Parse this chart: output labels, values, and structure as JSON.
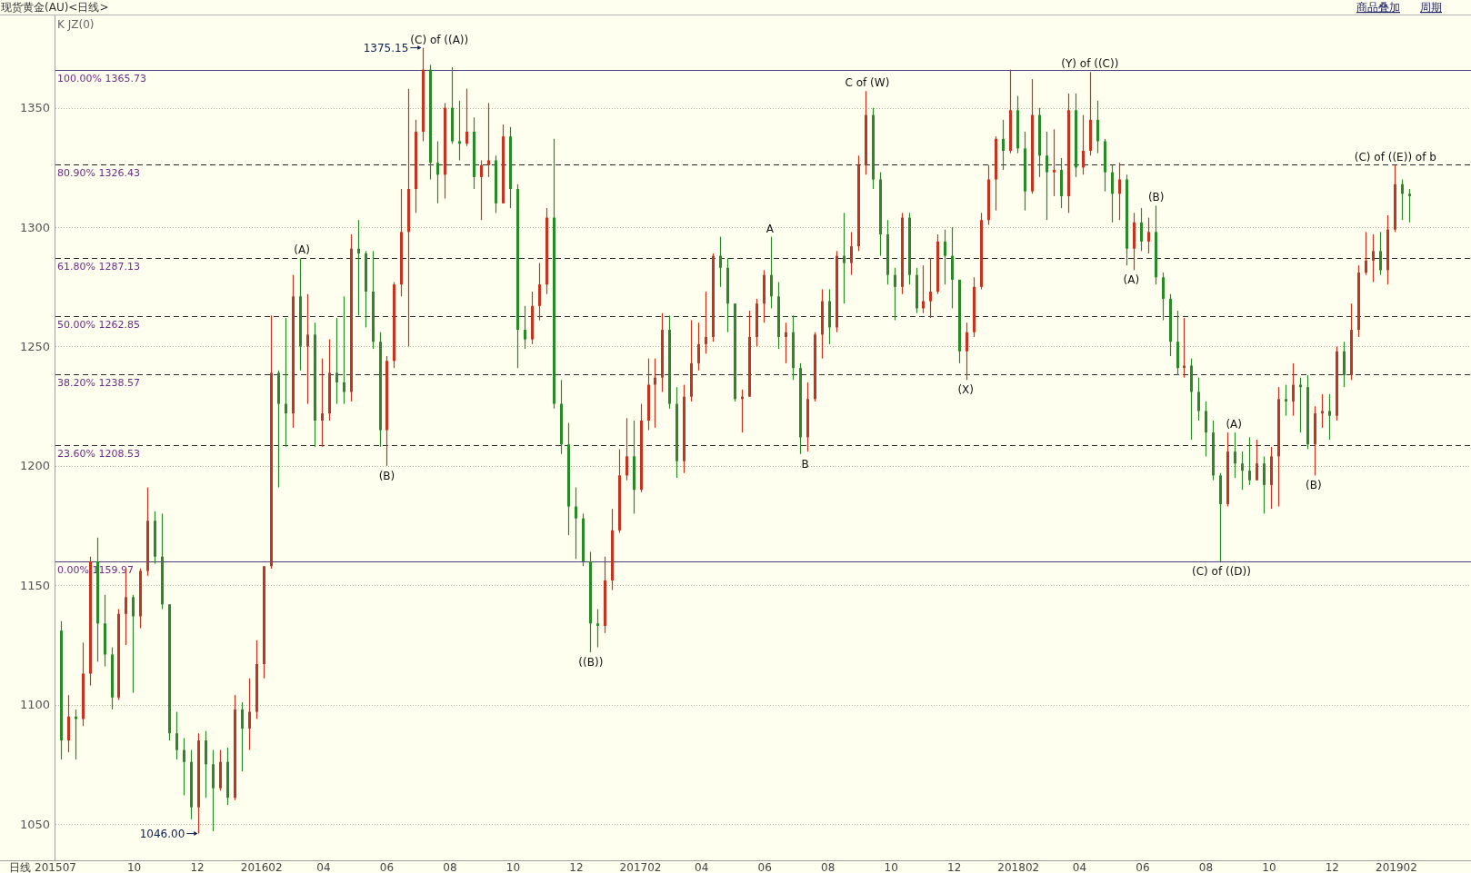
{
  "chart_data": {
    "type": "candlestick",
    "title": "现货黄金(AU)<日线>",
    "xlabel": "日线",
    "x": [
      "2015-07-22",
      "2015-07-29",
      "2015-08-05",
      "2015-08-12",
      "2015-08-19",
      "2015-08-26",
      "2015-09-02",
      "2015-09-09",
      "2015-09-16",
      "2015-09-23",
      "2015-09-30",
      "2015-10-07",
      "2015-10-14",
      "2015-10-21",
      "2015-10-28",
      "2015-11-04",
      "2015-11-11",
      "2015-11-18",
      "2015-11-25",
      "2015-12-02",
      "2015-12-09",
      "2015-12-16",
      "2015-12-23",
      "2015-12-30",
      "2016-01-06",
      "2016-01-13",
      "2016-01-20",
      "2016-01-27",
      "2016-02-03",
      "2016-02-10",
      "2016-02-17",
      "2016-02-24",
      "2016-03-02",
      "2016-03-09",
      "2016-03-16",
      "2016-03-23",
      "2016-03-30",
      "2016-04-06",
      "2016-04-13",
      "2016-04-20",
      "2016-04-27",
      "2016-05-04",
      "2016-05-11",
      "2016-05-18",
      "2016-05-25",
      "2016-06-01",
      "2016-06-08",
      "2016-06-15",
      "2016-06-22",
      "2016-06-29",
      "2016-07-06",
      "2016-07-13",
      "2016-07-20",
      "2016-07-27",
      "2016-08-03",
      "2016-08-10",
      "2016-08-17",
      "2016-08-24",
      "2016-08-31",
      "2016-09-07",
      "2016-09-14",
      "2016-09-21",
      "2016-09-28",
      "2016-10-05",
      "2016-10-12",
      "2016-10-19",
      "2016-10-26",
      "2016-11-02",
      "2016-11-09",
      "2016-11-16",
      "2016-11-23",
      "2016-11-30",
      "2016-12-07",
      "2016-12-14",
      "2016-12-21",
      "2016-12-28",
      "2017-01-04",
      "2017-01-11",
      "2017-01-18",
      "2017-01-25",
      "2017-02-01",
      "2017-02-08",
      "2017-02-15",
      "2017-02-22",
      "2017-03-01",
      "2017-03-08",
      "2017-03-15",
      "2017-03-22",
      "2017-03-29",
      "2017-04-05",
      "2017-04-12",
      "2017-04-19",
      "2017-04-26",
      "2017-05-03",
      "2017-05-10",
      "2017-05-17",
      "2017-05-24",
      "2017-05-31",
      "2017-06-07",
      "2017-06-14",
      "2017-06-21",
      "2017-06-28",
      "2017-07-05",
      "2017-07-12",
      "2017-07-19",
      "2017-07-26",
      "2017-08-02",
      "2017-08-09",
      "2017-08-16",
      "2017-08-23",
      "2017-08-30",
      "2017-09-06",
      "2017-09-13",
      "2017-09-20",
      "2017-09-27",
      "2017-10-04",
      "2017-10-11",
      "2017-10-18",
      "2017-10-25",
      "2017-11-01",
      "2017-11-08",
      "2017-11-15",
      "2017-11-22",
      "2017-11-29",
      "2017-12-06",
      "2017-12-13",
      "2017-12-20",
      "2017-12-27",
      "2018-01-03",
      "2018-01-10",
      "2018-01-17",
      "2018-01-24",
      "2018-01-31",
      "2018-02-07",
      "2018-02-14",
      "2018-02-21",
      "2018-02-28",
      "2018-03-07",
      "2018-03-14",
      "2018-03-21",
      "2018-03-28",
      "2018-04-04",
      "2018-04-11",
      "2018-04-18",
      "2018-04-25",
      "2018-05-02",
      "2018-05-09",
      "2018-05-16",
      "2018-05-23",
      "2018-05-30",
      "2018-06-06",
      "2018-06-13",
      "2018-06-20",
      "2018-06-27",
      "2018-07-04",
      "2018-07-11",
      "2018-07-18",
      "2018-07-25",
      "2018-08-01",
      "2018-08-08",
      "2018-08-15",
      "2018-08-22",
      "2018-08-29",
      "2018-09-05",
      "2018-09-12",
      "2018-09-19",
      "2018-09-26",
      "2018-10-03",
      "2018-10-10",
      "2018-10-17",
      "2018-10-24",
      "2018-10-31",
      "2018-11-07",
      "2018-11-14",
      "2018-11-21",
      "2018-11-28",
      "2018-12-05",
      "2018-12-12",
      "2018-12-19",
      "2018-12-26",
      "2019-01-02",
      "2019-01-09",
      "2019-01-16",
      "2019-01-23",
      "2019-01-30",
      "2019-02-06",
      "2019-02-13"
    ],
    "ohlc": [
      [
        1131,
        1135,
        1077,
        1085
      ],
      [
        1085,
        1104,
        1080,
        1095
      ],
      [
        1095,
        1098,
        1077,
        1094
      ],
      [
        1094,
        1126,
        1091,
        1113
      ],
      [
        1113,
        1162,
        1108,
        1160
      ],
      [
        1160,
        1170,
        1118,
        1134
      ],
      [
        1134,
        1146,
        1116,
        1121
      ],
      [
        1121,
        1124,
        1098,
        1103
      ],
      [
        1103,
        1140,
        1102,
        1138
      ],
      [
        1138,
        1157,
        1125,
        1145
      ],
      [
        1145,
        1146,
        1105,
        1137
      ],
      [
        1137,
        1157,
        1132,
        1156
      ],
      [
        1156,
        1191,
        1154,
        1177
      ],
      [
        1177,
        1181,
        1159,
        1162
      ],
      [
        1162,
        1180,
        1140,
        1142
      ],
      [
        1142,
        1142,
        1085,
        1088
      ],
      [
        1088,
        1097,
        1077,
        1081
      ],
      [
        1081,
        1086,
        1062,
        1076
      ],
      [
        1076,
        1081,
        1052,
        1057
      ],
      [
        1057,
        1088,
        1046,
        1085
      ],
      [
        1085,
        1089,
        1061,
        1075
      ],
      [
        1075,
        1081,
        1047,
        1065
      ],
      [
        1065,
        1081,
        1064,
        1076
      ],
      [
        1076,
        1082,
        1058,
        1061
      ],
      [
        1061,
        1104,
        1060,
        1098
      ],
      [
        1098,
        1101,
        1072,
        1090
      ],
      [
        1090,
        1111,
        1081,
        1097
      ],
      [
        1097,
        1127,
        1094,
        1117
      ],
      [
        1117,
        1158,
        1111,
        1158
      ],
      [
        1158,
        1263,
        1157,
        1239
      ],
      [
        1239,
        1240,
        1191,
        1226
      ],
      [
        1226,
        1262,
        1208,
        1222
      ],
      [
        1222,
        1280,
        1216,
        1271
      ],
      [
        1271,
        1287,
        1240,
        1250
      ],
      [
        1250,
        1272,
        1226,
        1255
      ],
      [
        1255,
        1260,
        1208,
        1219
      ],
      [
        1219,
        1245,
        1208,
        1222
      ],
      [
        1222,
        1253,
        1219,
        1239
      ],
      [
        1239,
        1262,
        1226,
        1235
      ],
      [
        1235,
        1271,
        1226,
        1231
      ],
      [
        1231,
        1297,
        1227,
        1291
      ],
      [
        1291,
        1303,
        1263,
        1289
      ],
      [
        1289,
        1290,
        1258,
        1273
      ],
      [
        1273,
        1290,
        1249,
        1252
      ],
      [
        1252,
        1256,
        1208,
        1215
      ],
      [
        1215,
        1246,
        1200,
        1244
      ],
      [
        1244,
        1277,
        1241,
        1276
      ],
      [
        1276,
        1316,
        1271,
        1298
      ],
      [
        1298,
        1358,
        1250,
        1316
      ],
      [
        1316,
        1345,
        1306,
        1340
      ],
      [
        1340,
        1375.15,
        1336,
        1366
      ],
      [
        1366,
        1368,
        1320,
        1327
      ],
      [
        1327,
        1336,
        1310,
        1322
      ],
      [
        1322,
        1352,
        1312,
        1350
      ],
      [
        1350,
        1367,
        1335,
        1336
      ],
      [
        1336,
        1353,
        1328,
        1335
      ],
      [
        1335,
        1358,
        1334,
        1340
      ],
      [
        1340,
        1346,
        1316,
        1321
      ],
      [
        1321,
        1328,
        1303,
        1326
      ],
      [
        1326,
        1352,
        1321,
        1328
      ],
      [
        1328,
        1330,
        1306,
        1310
      ],
      [
        1310,
        1343,
        1310,
        1338
      ],
      [
        1338,
        1342,
        1308,
        1316
      ],
      [
        1316,
        1318,
        1241,
        1257
      ],
      [
        1257,
        1267,
        1249,
        1253
      ],
      [
        1253,
        1273,
        1251,
        1267
      ],
      [
        1267,
        1285,
        1261,
        1276
      ],
      [
        1276,
        1308,
        1272,
        1304
      ],
      [
        1304,
        1337,
        1224,
        1226
      ],
      [
        1226,
        1236,
        1205,
        1209
      ],
      [
        1209,
        1218,
        1171,
        1183
      ],
      [
        1183,
        1191,
        1161,
        1178
      ],
      [
        1178,
        1180,
        1158,
        1160
      ],
      [
        1160,
        1164,
        1122,
        1134
      ],
      [
        1134,
        1140,
        1124,
        1133
      ],
      [
        1133,
        1162,
        1130,
        1152
      ],
      [
        1152,
        1182,
        1148,
        1173
      ],
      [
        1173,
        1207,
        1172,
        1196
      ],
      [
        1196,
        1220,
        1194,
        1204
      ],
      [
        1204,
        1219,
        1180,
        1190
      ],
      [
        1190,
        1226,
        1189,
        1219
      ],
      [
        1219,
        1245,
        1215,
        1234
      ],
      [
        1234,
        1245,
        1216,
        1237
      ],
      [
        1237,
        1264,
        1231,
        1257
      ],
      [
        1257,
        1263,
        1224,
        1226
      ],
      [
        1226,
        1233,
        1195,
        1202
      ],
      [
        1202,
        1234,
        1197,
        1229
      ],
      [
        1229,
        1261,
        1227,
        1243
      ],
      [
        1243,
        1260,
        1240,
        1251
      ],
      [
        1251,
        1273,
        1247,
        1254
      ],
      [
        1254,
        1289,
        1252,
        1288
      ],
      [
        1288,
        1296,
        1275,
        1283
      ],
      [
        1283,
        1287,
        1256,
        1268
      ],
      [
        1268,
        1268,
        1227,
        1228
      ],
      [
        1228,
        1232,
        1214,
        1229
      ],
      [
        1229,
        1265,
        1229,
        1254
      ],
      [
        1254,
        1270,
        1250,
        1268
      ],
      [
        1268,
        1282,
        1260,
        1280
      ],
      [
        1280,
        1296,
        1266,
        1271
      ],
      [
        1271,
        1277,
        1249,
        1254
      ],
      [
        1254,
        1260,
        1243,
        1256
      ],
      [
        1256,
        1263,
        1236,
        1241
      ],
      [
        1241,
        1243,
        1205,
        1212
      ],
      [
        1212,
        1235,
        1206,
        1228
      ],
      [
        1228,
        1256,
        1227,
        1255
      ],
      [
        1255,
        1274,
        1245,
        1269
      ],
      [
        1269,
        1274,
        1251,
        1258
      ],
      [
        1258,
        1290,
        1256,
        1288
      ],
      [
        1288,
        1306,
        1268,
        1285
      ],
      [
        1285,
        1298,
        1280,
        1292
      ],
      [
        1292,
        1330,
        1290,
        1326
      ],
      [
        1326,
        1357,
        1322,
        1347
      ],
      [
        1347,
        1350,
        1316,
        1320
      ],
      [
        1320,
        1323,
        1288,
        1297
      ],
      [
        1297,
        1303,
        1276,
        1280
      ],
      [
        1280,
        1283,
        1261,
        1275
      ],
      [
        1275,
        1306,
        1272,
        1304
      ],
      [
        1304,
        1306,
        1276,
        1280
      ],
      [
        1280,
        1283,
        1264,
        1266
      ],
      [
        1266,
        1284,
        1264,
        1269
      ],
      [
        1269,
        1287,
        1262,
        1273
      ],
      [
        1273,
        1297,
        1272,
        1294
      ],
      [
        1294,
        1299,
        1276,
        1288
      ],
      [
        1288,
        1300,
        1266,
        1278
      ],
      [
        1278,
        1278,
        1243,
        1248
      ],
      [
        1248,
        1260,
        1236,
        1256
      ],
      [
        1256,
        1279,
        1254,
        1275
      ],
      [
        1275,
        1306,
        1274,
        1303
      ],
      [
        1303,
        1326,
        1301,
        1320
      ],
      [
        1320,
        1338,
        1307,
        1337
      ],
      [
        1337,
        1345,
        1324,
        1332
      ],
      [
        1332,
        1366,
        1331,
        1349
      ],
      [
        1349,
        1355,
        1331,
        1333
      ],
      [
        1333,
        1340,
        1307,
        1315
      ],
      [
        1315,
        1362,
        1314,
        1347
      ],
      [
        1347,
        1350,
        1321,
        1330
      ],
      [
        1330,
        1340,
        1303,
        1323
      ],
      [
        1323,
        1341,
        1313,
        1324
      ],
      [
        1324,
        1329,
        1308,
        1313
      ],
      [
        1313,
        1356,
        1306,
        1349
      ],
      [
        1349,
        1356,
        1321,
        1325
      ],
      [
        1325,
        1347,
        1322,
        1332
      ],
      [
        1332,
        1365,
        1330,
        1345
      ],
      [
        1345,
        1353,
        1331,
        1336
      ],
      [
        1336,
        1337,
        1315,
        1323
      ],
      [
        1323,
        1326,
        1302,
        1314
      ],
      [
        1314,
        1327,
        1303,
        1320
      ],
      [
        1320,
        1322,
        1284,
        1291
      ],
      [
        1291,
        1306,
        1282,
        1302
      ],
      [
        1302,
        1308,
        1290,
        1294
      ],
      [
        1294,
        1304,
        1289,
        1298
      ],
      [
        1298,
        1309,
        1276,
        1279
      ],
      [
        1279,
        1281,
        1261,
        1270
      ],
      [
        1270,
        1272,
        1246,
        1252
      ],
      [
        1252,
        1265,
        1238,
        1241
      ],
      [
        1241,
        1262,
        1237,
        1242
      ],
      [
        1242,
        1245,
        1211,
        1231
      ],
      [
        1231,
        1237,
        1219,
        1223
      ],
      [
        1223,
        1227,
        1204,
        1214
      ],
      [
        1214,
        1219,
        1194,
        1196
      ],
      [
        1196,
        1197,
        1160,
        1184
      ],
      [
        1184,
        1214,
        1183,
        1206
      ],
      [
        1206,
        1214,
        1195,
        1201
      ],
      [
        1201,
        1206,
        1190,
        1198
      ],
      [
        1198,
        1212,
        1192,
        1194
      ],
      [
        1194,
        1211,
        1194,
        1201
      ],
      [
        1201,
        1204,
        1180,
        1192
      ],
      [
        1192,
        1208,
        1182,
        1204
      ],
      [
        1204,
        1233,
        1183,
        1228
      ],
      [
        1228,
        1234,
        1221,
        1227
      ],
      [
        1227,
        1243,
        1221,
        1234
      ],
      [
        1234,
        1237,
        1214,
        1233
      ],
      [
        1233,
        1238,
        1207,
        1209
      ],
      [
        1209,
        1225,
        1196,
        1222
      ],
      [
        1222,
        1230,
        1216,
        1223
      ],
      [
        1223,
        1230,
        1211,
        1221
      ],
      [
        1221,
        1250,
        1219,
        1248
      ],
      [
        1248,
        1252,
        1233,
        1238
      ],
      [
        1238,
        1268,
        1236,
        1257
      ],
      [
        1257,
        1284,
        1254,
        1281
      ],
      [
        1281,
        1298,
        1280,
        1286
      ],
      [
        1286,
        1297,
        1277,
        1290
      ],
      [
        1290,
        1298,
        1280,
        1282
      ],
      [
        1282,
        1305,
        1276,
        1299
      ],
      [
        1299,
        1326,
        1298,
        1318
      ],
      [
        1318,
        1320,
        1303,
        1314
      ],
      [
        1314,
        1316,
        1302,
        1313
      ]
    ],
    "colors": [
      "#2a8a2a",
      "#c8321e",
      "#2a8a2a",
      "#c8321e",
      "#c8321e",
      "#2a8a2a",
      "#2a8a2a",
      "#2a8a2a",
      "#c8321e",
      "#c8321e",
      "#2a8a2a",
      "#c8321e",
      "#c8321e",
      "#2a8a2a",
      "#2a8a2a",
      "#2a8a2a",
      "#2a8a2a",
      "#2a8a2a",
      "#2a8a2a",
      "#c8321e",
      "#2a8a2a",
      "#2a8a2a",
      "#c8321e",
      "#2a8a2a",
      "#c8321e",
      "#2a8a2a",
      "#c8321e",
      "#c8321e",
      "#c8321e",
      "#c8321e",
      "#2a8a2a",
      "#2a8a2a",
      "#c8321e",
      "#2a8a2a",
      "#c8321e",
      "#2a8a2a",
      "#c8321e",
      "#c8321e",
      "#2a8a2a",
      "#2a8a2a",
      "#c8321e",
      "#2a8a2a",
      "#2a8a2a",
      "#2a8a2a",
      "#2a8a2a",
      "#c8321e",
      "#c8321e",
      "#c8321e",
      "#c8321e",
      "#c8321e",
      "#c8321e",
      "#2a8a2a",
      "#2a8a2a",
      "#c8321e",
      "#2a8a2a",
      "#2a8a2a",
      "#c8321e",
      "#2a8a2a",
      "#c8321e",
      "#c8321e",
      "#2a8a2a",
      "#c8321e",
      "#2a8a2a",
      "#2a8a2a",
      "#2a8a2a",
      "#c8321e",
      "#c8321e",
      "#c8321e",
      "#2a8a2a",
      "#2a8a2a",
      "#2a8a2a",
      "#2a8a2a",
      "#2a8a2a",
      "#2a8a2a",
      "#2a8a2a",
      "#c8321e",
      "#c8321e",
      "#c8321e",
      "#c8321e",
      "#2a8a2a",
      "#c8321e",
      "#c8321e",
      "#c8321e",
      "#c8321e",
      "#2a8a2a",
      "#2a8a2a",
      "#c8321e",
      "#c8321e",
      "#c8321e",
      "#c8321e",
      "#c8321e",
      "#2a8a2a",
      "#2a8a2a",
      "#2a8a2a",
      "#c8321e",
      "#c8321e",
      "#c8321e",
      "#c8321e",
      "#2a8a2a",
      "#2a8a2a",
      "#c8321e",
      "#2a8a2a",
      "#2a8a2a",
      "#c8321e",
      "#c8321e",
      "#c8321e",
      "#2a8a2a",
      "#c8321e",
      "#2a8a2a",
      "#c8321e",
      "#c8321e",
      "#c8321e",
      "#2a8a2a",
      "#2a8a2a",
      "#2a8a2a",
      "#2a8a2a",
      "#c8321e",
      "#2a8a2a",
      "#2a8a2a",
      "#c8321e",
      "#c8321e",
      "#c8321e",
      "#2a8a2a",
      "#2a8a2a",
      "#2a8a2a",
      "#c8321e",
      "#c8321e",
      "#c8321e",
      "#c8321e",
      "#c8321e",
      "#2a8a2a",
      "#c8321e",
      "#2a8a2a",
      "#2a8a2a",
      "#c8321e",
      "#2a8a2a",
      "#2a8a2a",
      "#c8321e",
      "#2a8a2a",
      "#c8321e",
      "#2a8a2a",
      "#c8321e",
      "#c8321e",
      "#2a8a2a",
      "#2a8a2a",
      "#2a8a2a",
      "#c8321e",
      "#2a8a2a",
      "#c8321e",
      "#2a8a2a",
      "#c8321e",
      "#2a8a2a",
      "#2a8a2a",
      "#2a8a2a",
      "#2a8a2a",
      "#c8321e",
      "#2a8a2a",
      "#2a8a2a",
      "#2a8a2a",
      "#2a8a2a",
      "#2a8a2a",
      "#c8321e",
      "#2a8a2a",
      "#2a8a2a",
      "#2a8a2a",
      "#c8321e",
      "#2a8a2a",
      "#c8321e",
      "#c8321e",
      "#2a8a2a",
      "#c8321e",
      "#2a8a2a",
      "#2a8a2a",
      "#c8321e",
      "#c8321e",
      "#2a8a2a",
      "#c8321e",
      "#2a8a2a",
      "#c8321e",
      "#c8321e",
      "#c8321e",
      "#c8321e",
      "#2a8a2a",
      "#c8321e",
      "#c8321e",
      "#2a8a2a",
      "#2a8a2a"
    ],
    "xlim": [
      "2015-07-17",
      "2019-04-14"
    ],
    "xticks": [
      {
        "value": "2015-07-17",
        "label": "201507"
      },
      {
        "value": "2015-10-01",
        "label": "10"
      },
      {
        "value": "2015-12-01",
        "label": "12"
      },
      {
        "value": "2016-02-01",
        "label": "201602"
      },
      {
        "value": "2016-04-01",
        "label": "04"
      },
      {
        "value": "2016-06-01",
        "label": "06"
      },
      {
        "value": "2016-08-01",
        "label": "08"
      },
      {
        "value": "2016-10-01",
        "label": "10"
      },
      {
        "value": "2016-12-01",
        "label": "12"
      },
      {
        "value": "2017-02-01",
        "label": "201702"
      },
      {
        "value": "2017-04-01",
        "label": "04"
      },
      {
        "value": "2017-06-01",
        "label": "06"
      },
      {
        "value": "2017-08-01",
        "label": "08"
      },
      {
        "value": "2017-10-01",
        "label": "10"
      },
      {
        "value": "2017-12-01",
        "label": "12"
      },
      {
        "value": "2018-02-01",
        "label": "201802"
      },
      {
        "value": "2018-04-01",
        "label": "04"
      },
      {
        "value": "2018-06-01",
        "label": "06"
      },
      {
        "value": "2018-08-01",
        "label": "08"
      },
      {
        "value": "2018-10-01",
        "label": "10"
      },
      {
        "value": "2018-12-01",
        "label": "12"
      },
      {
        "value": "2019-02-01",
        "label": "201902"
      }
    ],
    "ylim": [
      1034.8,
      1388.7
    ],
    "yticks": [
      1050,
      1100,
      1150,
      1200,
      1250,
      1300,
      1350
    ],
    "grid": "y",
    "ref_lines": [
      {
        "axis": "y",
        "value": 1365.73,
        "label": "100.00% 1365.73",
        "color": "#4b3c80",
        "line_style": "solid"
      },
      {
        "axis": "y",
        "value": 1326.43,
        "label": "80.90% 1326.43",
        "color": "#2a2a2a",
        "line_style": "dashed"
      },
      {
        "axis": "y",
        "value": 1287.13,
        "label": "61.80% 1287.13",
        "color": "#2a2a2a",
        "line_style": "dashed"
      },
      {
        "axis": "y",
        "value": 1262.85,
        "label": "50.00% 1262.85",
        "color": "#2a2a2a",
        "line_style": "dashed"
      },
      {
        "axis": "y",
        "value": 1238.57,
        "label": "38.20% 1238.57",
        "color": "#2a2a2a",
        "line_style": "dashed"
      },
      {
        "axis": "y",
        "value": 1208.53,
        "label": "23.60% 1208.53",
        "color": "#2a2a2a",
        "line_style": "dashed"
      },
      {
        "axis": "y",
        "value": 1159.97,
        "label": "0.00% 1159.97",
        "color": "#4b3c80",
        "line_style": "solid"
      }
    ],
    "annotations": [
      "K JZ(0)",
      "商品叠加",
      "周期",
      {
        "text": "1375.15",
        "x": "2016-07-06",
        "y": 1375.15
      },
      {
        "text": "(C) of ((A))",
        "x": "2016-07-06",
        "y": 1375.15
      },
      {
        "text": "1046.00",
        "x": "2015-12-03",
        "y": 1046
      },
      {
        "text": "(A)",
        "x": "2016-03-11",
        "y": 1287
      },
      {
        "text": "(B)",
        "x": "2016-06-01",
        "y": 1200
      },
      {
        "text": "((B))",
        "x": "2016-12-15",
        "y": 1122
      },
      {
        "text": "A",
        "x": "2017-06-06",
        "y": 1296
      },
      {
        "text": "B",
        "x": "2017-07-10",
        "y": 1205
      },
      {
        "text": "C of (W)",
        "x": "2017-09-08",
        "y": 1357
      },
      {
        "text": "(X)",
        "x": "2017-12-12",
        "y": 1236
      },
      {
        "text": "(Y) of ((C))",
        "x": "2018-04-11",
        "y": 1365
      },
      {
        "text": "(A)",
        "x": "2018-05-21",
        "y": 1282
      },
      {
        "text": "(B)",
        "x": "2018-06-14",
        "y": 1309
      },
      {
        "text": "(C) of ((D))",
        "x": "2018-08-16",
        "y": 1160
      },
      {
        "text": "(A)",
        "x": "2018-08-28",
        "y": 1214
      },
      {
        "text": "(B)",
        "x": "2018-11-13",
        "y": 1196
      },
      {
        "text": "(C) of ((E)) of b",
        "x": "2019-01-31",
        "y": 1326
      }
    ]
  }
}
